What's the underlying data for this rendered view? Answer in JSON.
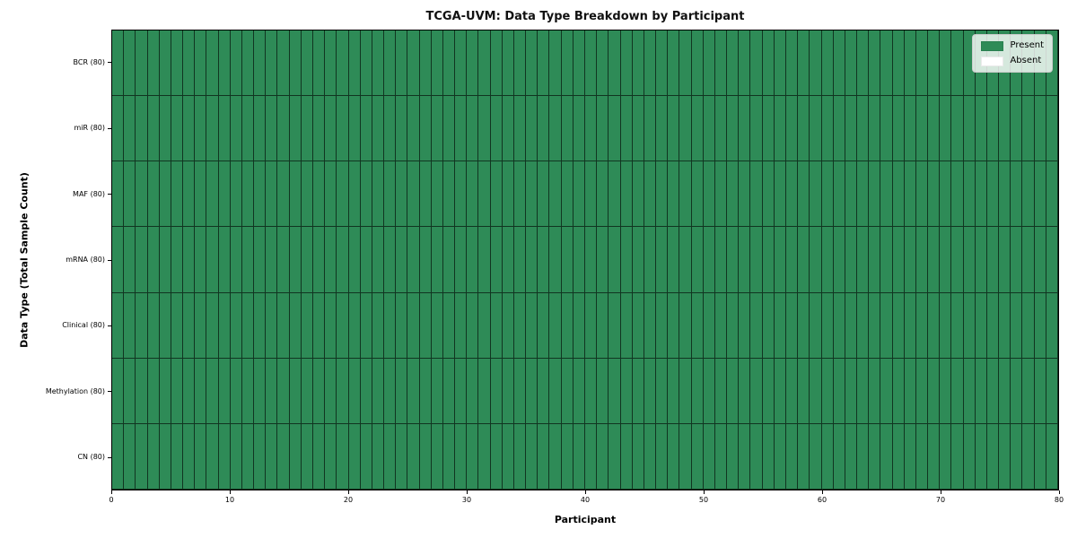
{
  "chart_data": {
    "type": "heatmap",
    "title": "TCGA-UVM: Data Type Breakdown by Participant",
    "xlabel": "Participant",
    "ylabel": "Data Type (Total Sample Count)",
    "x_range": [
      0,
      80
    ],
    "x_ticks": [
      0,
      10,
      20,
      30,
      40,
      50,
      60,
      70,
      80
    ],
    "n_participants": 80,
    "grid": false,
    "legend_position": "upper right",
    "rows": [
      {
        "label": "BCR (80)",
        "data_type": "BCR",
        "total_samples": 80,
        "present": 80,
        "absent": 0,
        "runs": [
          {
            "value": "present",
            "count": 80
          }
        ]
      },
      {
        "label": "miR (80)",
        "data_type": "miR",
        "total_samples": 80,
        "present": 80,
        "absent": 0,
        "runs": [
          {
            "value": "present",
            "count": 80
          }
        ]
      },
      {
        "label": "MAF (80)",
        "data_type": "MAF",
        "total_samples": 80,
        "present": 80,
        "absent": 0,
        "runs": [
          {
            "value": "present",
            "count": 80
          }
        ]
      },
      {
        "label": "mRNA (80)",
        "data_type": "mRNA",
        "total_samples": 80,
        "present": 80,
        "absent": 0,
        "runs": [
          {
            "value": "present",
            "count": 80
          }
        ]
      },
      {
        "label": "Clinical (80)",
        "data_type": "Clinical",
        "total_samples": 80,
        "present": 80,
        "absent": 0,
        "runs": [
          {
            "value": "present",
            "count": 80
          }
        ]
      },
      {
        "label": "Methylation (80)",
        "data_type": "Methylation",
        "total_samples": 80,
        "present": 80,
        "absent": 0,
        "runs": [
          {
            "value": "present",
            "count": 80
          }
        ]
      },
      {
        "label": "CN (80)",
        "data_type": "CN",
        "total_samples": 80,
        "present": 80,
        "absent": 0,
        "runs": [
          {
            "value": "present",
            "count": 80
          }
        ]
      }
    ],
    "legend": {
      "entries": [
        {
          "label": "Present",
          "value": "present",
          "color": "#2e8b57"
        },
        {
          "label": "Absent",
          "value": "absent",
          "color": "#ffffff"
        }
      ]
    },
    "colors": {
      "present": "#2e8b57",
      "absent": "#ffffff",
      "cell_edge": "#1f1f1f",
      "spine": "#000000"
    }
  }
}
